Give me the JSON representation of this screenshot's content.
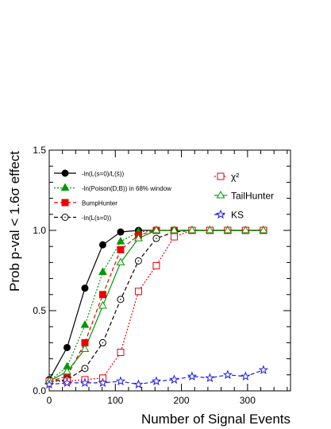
{
  "chart_data": {
    "type": "line",
    "xlabel": "Number of Signal Events",
    "ylabel": "Prob p-val < 1.6σ effect",
    "xlim": [
      0,
      365
    ],
    "ylim": [
      0,
      1.5
    ],
    "x_ticks": [
      "0",
      "100",
      "200",
      "300"
    ],
    "y_ticks": [
      "0.0",
      "0.5",
      "1.0",
      "1.5"
    ],
    "grid": false,
    "series": [
      {
        "name": "-ln(L(s=0)/L(ŝ))",
        "color": "#000000",
        "marker": "circle-filled",
        "dash": "solid",
        "x": [
          0,
          27,
          54,
          81,
          108,
          135,
          162,
          189,
          216,
          243,
          270,
          297,
          324
        ],
        "y": [
          0.07,
          0.27,
          0.64,
          0.91,
          0.99,
          1.0,
          1.0,
          1.0,
          1.0,
          1.0,
          1.0,
          1.0,
          1.0
        ]
      },
      {
        "name": "-ln(Poison(D;B)) in 68% window",
        "color": "#009900",
        "marker": "triangle-filled",
        "dash": "dotted",
        "x": [
          0,
          27,
          54,
          81,
          108,
          135,
          162,
          189,
          216,
          243,
          270,
          297,
          324
        ],
        "y": [
          0.06,
          0.15,
          0.41,
          0.74,
          0.93,
          0.99,
          1.0,
          1.0,
          1.0,
          1.0,
          1.0,
          1.0,
          1.0
        ]
      },
      {
        "name": "BumpHunter",
        "color": "#ee0000",
        "marker": "square-filled",
        "dash": "dashed",
        "x": [
          0,
          27,
          54,
          81,
          108,
          135,
          162,
          189,
          216,
          243,
          270,
          297,
          324
        ],
        "y": [
          0.06,
          0.09,
          0.3,
          0.6,
          0.88,
          0.97,
          1.0,
          1.0,
          1.0,
          1.0,
          1.0,
          1.0,
          1.0
        ]
      },
      {
        "name": "-ln(L(s=0))",
        "color": "#000000",
        "marker": "circle-open",
        "dash": "dashed",
        "x": [
          0,
          27,
          54,
          81,
          108,
          135,
          162,
          189,
          216,
          243,
          270,
          297,
          324
        ],
        "y": [
          0.06,
          0.07,
          0.14,
          0.3,
          0.57,
          0.81,
          0.95,
          0.99,
          1.0,
          1.0,
          1.0,
          1.0,
          1.0
        ]
      },
      {
        "name": "χ²",
        "color": "#ee0000",
        "marker": "square-open",
        "dash": "dotted",
        "x": [
          0,
          27,
          54,
          81,
          108,
          135,
          162,
          189,
          216,
          243,
          270,
          297,
          324
        ],
        "y": [
          0.06,
          0.06,
          0.07,
          0.08,
          0.24,
          0.62,
          0.78,
          0.96,
          1.0,
          1.0,
          1.0,
          1.0,
          1.0
        ]
      },
      {
        "name": "TailHunter",
        "color": "#009900",
        "marker": "triangle-open",
        "dash": "solid",
        "x": [
          0,
          27,
          54,
          81,
          108,
          135,
          162,
          189,
          216,
          243,
          270,
          297,
          324
        ],
        "y": [
          0.06,
          0.12,
          0.26,
          0.53,
          0.8,
          0.95,
          1.0,
          1.0,
          1.0,
          1.0,
          1.0,
          1.0,
          1.0
        ]
      },
      {
        "name": "KS",
        "color": "#1a1aee",
        "marker": "star-open",
        "dash": "dashed",
        "x": [
          0,
          27,
          54,
          81,
          108,
          135,
          162,
          189,
          216,
          243,
          270,
          297,
          324
        ],
        "y": [
          0.04,
          0.05,
          0.05,
          0.05,
          0.06,
          0.04,
          0.06,
          0.07,
          0.09,
          0.08,
          0.1,
          0.09,
          0.13
        ]
      }
    ],
    "legend_left": [
      0,
      1,
      2,
      3
    ],
    "legend_right": [
      4,
      5,
      6
    ]
  }
}
